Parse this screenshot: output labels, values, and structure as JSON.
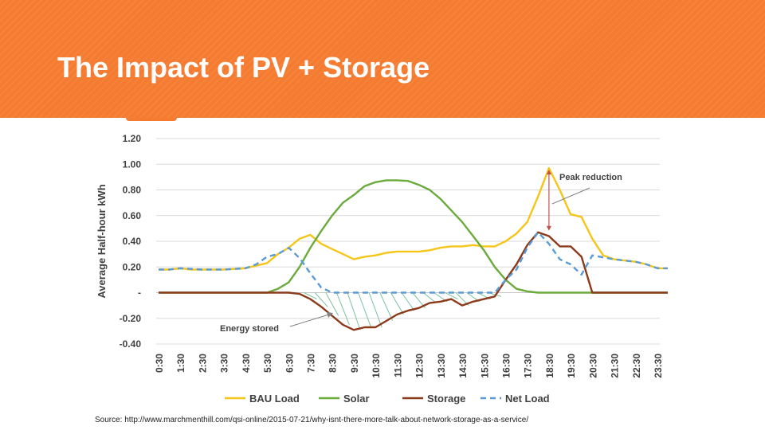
{
  "slide": {
    "title": "The Impact of PV + Storage",
    "source": "Source: http://www.marchmenthill.com/qsi-online/2015-07-21/why-isnt-there-more-talk-about-network-storage-as-a-service/"
  },
  "colors": {
    "header": "#f47b30",
    "bau": "#f5c518",
    "solar": "#6aab3c",
    "storage": "#8b3a1a",
    "net": "#5b9bd5"
  },
  "chart_data": {
    "type": "line",
    "ylabel": "Average Half-hour kWh",
    "xlabel": "",
    "ylim": [
      -0.4,
      1.2
    ],
    "yticks": [
      1.2,
      1.0,
      0.8,
      0.6,
      0.4,
      0.2,
      0,
      -0.2,
      -0.4
    ],
    "ytick_labels": [
      "1.20",
      "1.00",
      "0.80",
      "0.60",
      "0.40",
      "0.20",
      "-",
      "-0.20",
      "-0.40"
    ],
    "x": [
      "0:30",
      "1:30",
      "2:30",
      "3:30",
      "4:30",
      "5:30",
      "6:30",
      "7:30",
      "8:30",
      "9:30",
      "10:30",
      "11:30",
      "12:30",
      "13:30",
      "14:30",
      "15:30",
      "16:30",
      "17:30",
      "18:30",
      "19:30",
      "20:30",
      "21:30",
      "22:30",
      "23:30"
    ],
    "grid": "horizontal",
    "legend_position": "bottom",
    "series": [
      {
        "name": "BAU Load",
        "color": "#f5c518",
        "style": "solid",
        "points": [
          [
            0,
            0.18
          ],
          [
            0.5,
            0.18
          ],
          [
            1,
            0.19
          ],
          [
            1.5,
            0.18
          ],
          [
            2,
            0.18
          ],
          [
            3,
            0.18
          ],
          [
            4,
            0.19
          ],
          [
            4.5,
            0.21
          ],
          [
            5,
            0.23
          ],
          [
            5.5,
            0.3
          ],
          [
            6,
            0.35
          ],
          [
            6.5,
            0.42
          ],
          [
            7,
            0.45
          ],
          [
            7.5,
            0.38
          ],
          [
            8,
            0.34
          ],
          [
            8.5,
            0.3
          ],
          [
            9,
            0.26
          ],
          [
            9.5,
            0.28
          ],
          [
            10,
            0.29
          ],
          [
            10.5,
            0.31
          ],
          [
            11,
            0.32
          ],
          [
            11.5,
            0.32
          ],
          [
            12,
            0.32
          ],
          [
            12.5,
            0.33
          ],
          [
            13,
            0.35
          ],
          [
            13.5,
            0.36
          ],
          [
            14,
            0.36
          ],
          [
            14.5,
            0.37
          ],
          [
            15,
            0.36
          ],
          [
            15.5,
            0.36
          ],
          [
            16,
            0.4
          ],
          [
            16.5,
            0.46
          ],
          [
            17,
            0.55
          ],
          [
            17.5,
            0.75
          ],
          [
            18,
            0.97
          ],
          [
            18.5,
            0.8
          ],
          [
            19,
            0.61
          ],
          [
            19.5,
            0.59
          ],
          [
            20,
            0.42
          ],
          [
            20.5,
            0.29
          ],
          [
            21,
            0.26
          ],
          [
            22,
            0.24
          ],
          [
            22.5,
            0.22
          ],
          [
            23,
            0.19
          ],
          [
            23.5,
            0.19
          ]
        ]
      },
      {
        "name": "Solar",
        "color": "#6aab3c",
        "style": "solid",
        "points": [
          [
            0,
            0
          ],
          [
            4,
            0
          ],
          [
            5,
            0
          ],
          [
            5.5,
            0.03
          ],
          [
            6,
            0.08
          ],
          [
            6.5,
            0.2
          ],
          [
            7,
            0.35
          ],
          [
            7.5,
            0.48
          ],
          [
            8,
            0.6
          ],
          [
            8.5,
            0.7
          ],
          [
            9,
            0.76
          ],
          [
            9.5,
            0.83
          ],
          [
            10,
            0.86
          ],
          [
            10.5,
            0.875
          ],
          [
            11,
            0.875
          ],
          [
            11.5,
            0.87
          ],
          [
            12,
            0.84
          ],
          [
            12.5,
            0.8
          ],
          [
            13,
            0.73
          ],
          [
            13.5,
            0.64
          ],
          [
            14,
            0.55
          ],
          [
            14.5,
            0.44
          ],
          [
            15,
            0.33
          ],
          [
            15.5,
            0.2
          ],
          [
            16,
            0.1
          ],
          [
            16.5,
            0.03
          ],
          [
            17,
            0.01
          ],
          [
            17.5,
            0
          ],
          [
            23.5,
            0
          ]
        ]
      },
      {
        "name": "Storage",
        "color": "#8b3a1a",
        "style": "solid",
        "points": [
          [
            0,
            0
          ],
          [
            6,
            0
          ],
          [
            6.5,
            -0.01
          ],
          [
            7,
            -0.05
          ],
          [
            7.5,
            -0.11
          ],
          [
            8,
            -0.18
          ],
          [
            8.5,
            -0.25
          ],
          [
            9,
            -0.29
          ],
          [
            9.5,
            -0.27
          ],
          [
            10,
            -0.27
          ],
          [
            10.5,
            -0.22
          ],
          [
            11,
            -0.17
          ],
          [
            11.5,
            -0.14
          ],
          [
            12,
            -0.12
          ],
          [
            12.5,
            -0.08
          ],
          [
            13,
            -0.07
          ],
          [
            13.5,
            -0.05
          ],
          [
            14,
            -0.1
          ],
          [
            14.5,
            -0.07
          ],
          [
            15,
            -0.05
          ],
          [
            15.5,
            -0.03
          ],
          [
            16,
            0.1
          ],
          [
            16.5,
            0.22
          ],
          [
            17,
            0.37
          ],
          [
            17.5,
            0.47
          ],
          [
            18,
            0.44
          ],
          [
            18.5,
            0.36
          ],
          [
            19,
            0.36
          ],
          [
            19.5,
            0.28
          ],
          [
            20,
            0
          ],
          [
            23.5,
            0
          ]
        ]
      },
      {
        "name": "Net Load",
        "color": "#5b9bd5",
        "style": "dashed",
        "points": [
          [
            0,
            0.18
          ],
          [
            0.5,
            0.18
          ],
          [
            1,
            0.19
          ],
          [
            2,
            0.18
          ],
          [
            3,
            0.18
          ],
          [
            4,
            0.19
          ],
          [
            4.5,
            0.22
          ],
          [
            5,
            0.28
          ],
          [
            5.5,
            0.3
          ],
          [
            6,
            0.35
          ],
          [
            6.5,
            0.27
          ],
          [
            7,
            0.15
          ],
          [
            7.5,
            0.04
          ],
          [
            8,
            0
          ],
          [
            15.5,
            0
          ],
          [
            16,
            0.1
          ],
          [
            16.5,
            0.18
          ],
          [
            17,
            0.35
          ],
          [
            17.5,
            0.47
          ],
          [
            18,
            0.38
          ],
          [
            18.5,
            0.26
          ],
          [
            19,
            0.22
          ],
          [
            19.5,
            0.14
          ],
          [
            20,
            0.29
          ],
          [
            21,
            0.26
          ],
          [
            22,
            0.24
          ],
          [
            22.5,
            0.22
          ],
          [
            23,
            0.19
          ],
          [
            23.5,
            0.19
          ]
        ]
      }
    ],
    "annotations": [
      {
        "text": "Peak reduction"
      },
      {
        "text": "Energy stored"
      }
    ]
  }
}
